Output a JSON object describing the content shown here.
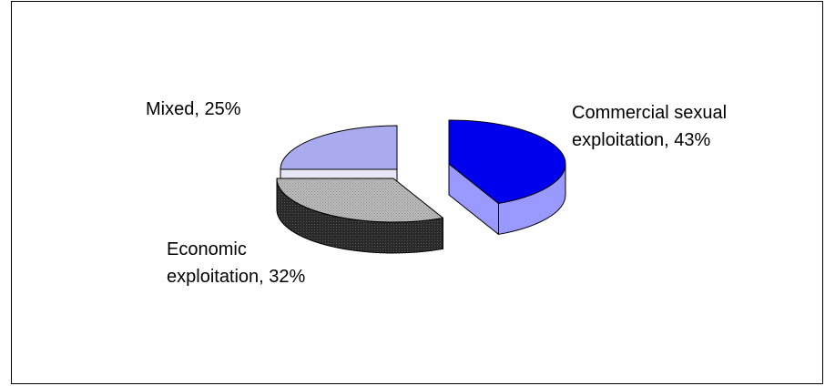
{
  "chart_data": {
    "type": "pie",
    "title": "",
    "categories": [
      "Commercial sexual exploitation",
      "Economic exploitation",
      "Mixed"
    ],
    "values": [
      43,
      32,
      25
    ],
    "unit": "%",
    "exploded": true,
    "legend": "none",
    "data_labels": [
      {
        "lines": [
          "Commercial sexual",
          "exploitation, 43%"
        ]
      },
      {
        "lines": [
          "Economic",
          "exploitation, 32%"
        ]
      },
      {
        "lines": [
          "Mixed, 25%"
        ]
      }
    ],
    "colors": {
      "commercial_top": "#0000ee",
      "commercial_side": "#9999ff",
      "economic_top": "#b4b4b4",
      "economic_side": "#262626",
      "mixed_top": "#aaaaee",
      "mixed_side": "#e6e6f5"
    }
  }
}
